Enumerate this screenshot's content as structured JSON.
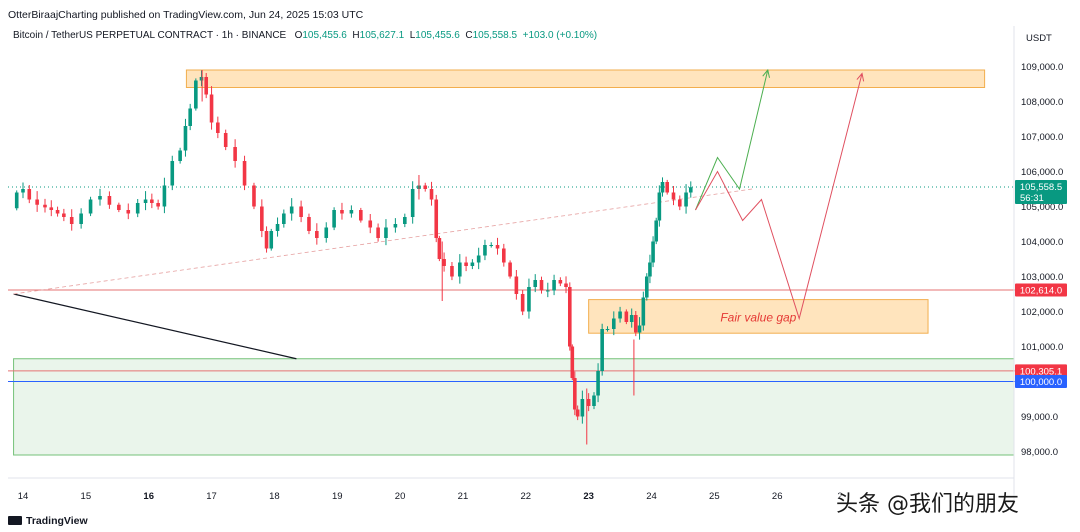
{
  "header": {
    "publisher": "OtterBiraajCharting published on TradingView.com, Jun 24, 2025 15:03 UTC",
    "symbol": "Bitcoin / TetherUS PERPETUAL CONTRACT · 1h · BINANCE",
    "open_label": "O",
    "open": "105,455.6",
    "high_label": "H",
    "high": "105,627.1",
    "low_label": "L",
    "low": "105,455.6",
    "close_label": "C",
    "close": "105,558.5",
    "change": "+103.0 (+0.10%)",
    "currency": "USDT"
  },
  "footer": {
    "logo_text": "TradingView"
  },
  "watermark": "头条 @我们的朋友",
  "colors": {
    "up": "#089981",
    "down": "#f23645",
    "resistance_fill": "#ffe0b2",
    "resistance_stroke": "#f0a030",
    "support_fill": "#e8f5e9",
    "support_stroke": "#66bb6a",
    "bull_path": "#4caf50",
    "bear_path": "#e05060",
    "level_red": "#e57373",
    "level_blue": "#2962ff"
  },
  "chart_data": {
    "type": "candlestick",
    "x_ticks": [
      "14",
      "15",
      "16",
      "17",
      "18",
      "19",
      "20",
      "21",
      "22",
      "23",
      "24",
      "25",
      "26",
      "2"
    ],
    "y_ticks": [
      "109,000.0",
      "108,000.0",
      "107,000.0",
      "106,000.0",
      "105,000.0",
      "104,000.0",
      "103,000.0",
      "102,000.0",
      "101,000.0",
      "100,000.0",
      "99,000.0",
      "98,000.0"
    ],
    "ylim": [
      97800,
      110400
    ],
    "price_labels": [
      {
        "text": "105,558.5",
        "value": 105558.5,
        "sub": "56:31",
        "color": "#089981"
      },
      {
        "text": "102,614.0",
        "value": 102614,
        "color": "#f23645"
      },
      {
        "text": "100,305.1",
        "value": 100305.1,
        "color": "#f23645"
      },
      {
        "text": "100,000.0",
        "value": 100000,
        "color": "#2962ff"
      }
    ],
    "zones": [
      {
        "name": "resistance-zone",
        "x_from": 16.6,
        "x_to": 29.3,
        "y_from": 108400,
        "y_to": 108900
      },
      {
        "name": "fair-value-gap",
        "x_from": 23.0,
        "x_to": 28.4,
        "y_from": 101380,
        "y_to": 102340,
        "label": "Fair value gap"
      },
      {
        "name": "support-zone",
        "x_from": 13.85,
        "x_to": 29.99,
        "y_from": 97900,
        "y_to": 100650
      }
    ],
    "horizontal_levels": [
      {
        "value": 102614,
        "color": "#e57373"
      },
      {
        "value": 100305.1,
        "color": "#e57373"
      },
      {
        "value": 100000,
        "color": "#2962ff"
      },
      {
        "value": 105558.5,
        "color": "#089981",
        "dotted": true
      }
    ],
    "trend_lines": [
      {
        "name": "downtrend-line",
        "color": "#131722",
        "points": [
          [
            13.85,
            102500
          ],
          [
            18.35,
            100650
          ]
        ]
      },
      {
        "name": "dashed-trend-line",
        "color": "#e6a0a0",
        "dashed": true,
        "points": [
          [
            13.85,
            102500
          ],
          [
            25.6,
            105500
          ]
        ]
      }
    ],
    "projections": [
      {
        "name": "bullish-projection",
        "color": "#4caf50",
        "points": [
          [
            24.7,
            104900
          ],
          [
            25.05,
            106400
          ],
          [
            25.4,
            105500
          ],
          [
            25.85,
            108900
          ]
        ]
      },
      {
        "name": "bearish-projection",
        "color": "#e05060",
        "points": [
          [
            24.7,
            104900
          ],
          [
            25.05,
            106000
          ],
          [
            25.45,
            104600
          ],
          [
            25.75,
            105200
          ],
          [
            26.35,
            101800
          ],
          [
            27.35,
            108800
          ]
        ]
      }
    ],
    "price_path": [
      [
        13.85,
        104950
      ],
      [
        13.95,
        105400
      ],
      [
        14.05,
        105500
      ],
      [
        14.15,
        105200
      ],
      [
        14.3,
        105050
      ],
      [
        14.5,
        104900
      ],
      [
        14.7,
        104700
      ],
      [
        14.85,
        104500
      ],
      [
        15.0,
        104800
      ],
      [
        15.15,
        105200
      ],
      [
        15.3,
        105300
      ],
      [
        15.45,
        105050
      ],
      [
        15.6,
        104900
      ],
      [
        15.75,
        104800
      ],
      [
        15.9,
        105100
      ],
      [
        16.0,
        105200
      ],
      [
        16.1,
        105100
      ],
      [
        16.2,
        105000
      ],
      [
        16.3,
        105600
      ],
      [
        16.45,
        106300
      ],
      [
        16.55,
        106600
      ],
      [
        16.62,
        107300
      ],
      [
        16.7,
        107800
      ],
      [
        16.8,
        108600
      ],
      [
        16.88,
        108700
      ],
      [
        16.95,
        108200
      ],
      [
        17.05,
        107400
      ],
      [
        17.15,
        107100
      ],
      [
        17.3,
        106700
      ],
      [
        17.45,
        106300
      ],
      [
        17.6,
        105600
      ],
      [
        17.75,
        105000
      ],
      [
        17.85,
        104300
      ],
      [
        17.9,
        103800
      ],
      [
        18.0,
        104300
      ],
      [
        18.1,
        104500
      ],
      [
        18.2,
        104800
      ],
      [
        18.35,
        105000
      ],
      [
        18.5,
        104700
      ],
      [
        18.6,
        104300
      ],
      [
        18.75,
        104100
      ],
      [
        18.9,
        104400
      ],
      [
        19.0,
        104900
      ],
      [
        19.15,
        104800
      ],
      [
        19.3,
        104900
      ],
      [
        19.45,
        104600
      ],
      [
        19.6,
        104400
      ],
      [
        19.7,
        104100
      ],
      [
        19.85,
        104400
      ],
      [
        20.0,
        104500
      ],
      [
        20.15,
        104700
      ],
      [
        20.25,
        105500
      ],
      [
        20.35,
        105600
      ],
      [
        20.45,
        105500
      ],
      [
        20.55,
        105200
      ],
      [
        20.6,
        104100
      ],
      [
        20.65,
        103500
      ],
      [
        20.75,
        103300
      ],
      [
        20.9,
        103000
      ],
      [
        21.0,
        103400
      ],
      [
        21.1,
        103300
      ],
      [
        21.2,
        103400
      ],
      [
        21.3,
        103600
      ],
      [
        21.4,
        103900
      ],
      [
        21.5,
        103900
      ],
      [
        21.6,
        103800
      ],
      [
        21.7,
        103400
      ],
      [
        21.8,
        103000
      ],
      [
        21.9,
        102500
      ],
      [
        22.0,
        102000
      ],
      [
        22.1,
        102700
      ],
      [
        22.2,
        102900
      ],
      [
        22.3,
        102600
      ],
      [
        22.4,
        102600
      ],
      [
        22.5,
        102900
      ],
      [
        22.6,
        102800
      ],
      [
        22.68,
        102700
      ],
      [
        22.72,
        101000
      ],
      [
        22.76,
        100100
      ],
      [
        22.8,
        99200
      ],
      [
        22.85,
        99000
      ],
      [
        22.95,
        99500
      ],
      [
        23.05,
        99300
      ],
      [
        23.12,
        99600
      ],
      [
        23.18,
        100300
      ],
      [
        23.25,
        101500
      ],
      [
        23.35,
        101500
      ],
      [
        23.45,
        101800
      ],
      [
        23.55,
        102000
      ],
      [
        23.65,
        101700
      ],
      [
        23.72,
        101900
      ],
      [
        23.78,
        101400
      ],
      [
        23.84,
        101600
      ],
      [
        23.9,
        102400
      ],
      [
        23.95,
        103000
      ],
      [
        24.0,
        103400
      ],
      [
        24.05,
        104000
      ],
      [
        24.1,
        104600
      ],
      [
        24.15,
        105400
      ],
      [
        24.2,
        105700
      ],
      [
        24.3,
        105400
      ],
      [
        24.4,
        105200
      ],
      [
        24.5,
        105000
      ],
      [
        24.6,
        105400
      ],
      [
        24.65,
        105550
      ]
    ]
  }
}
